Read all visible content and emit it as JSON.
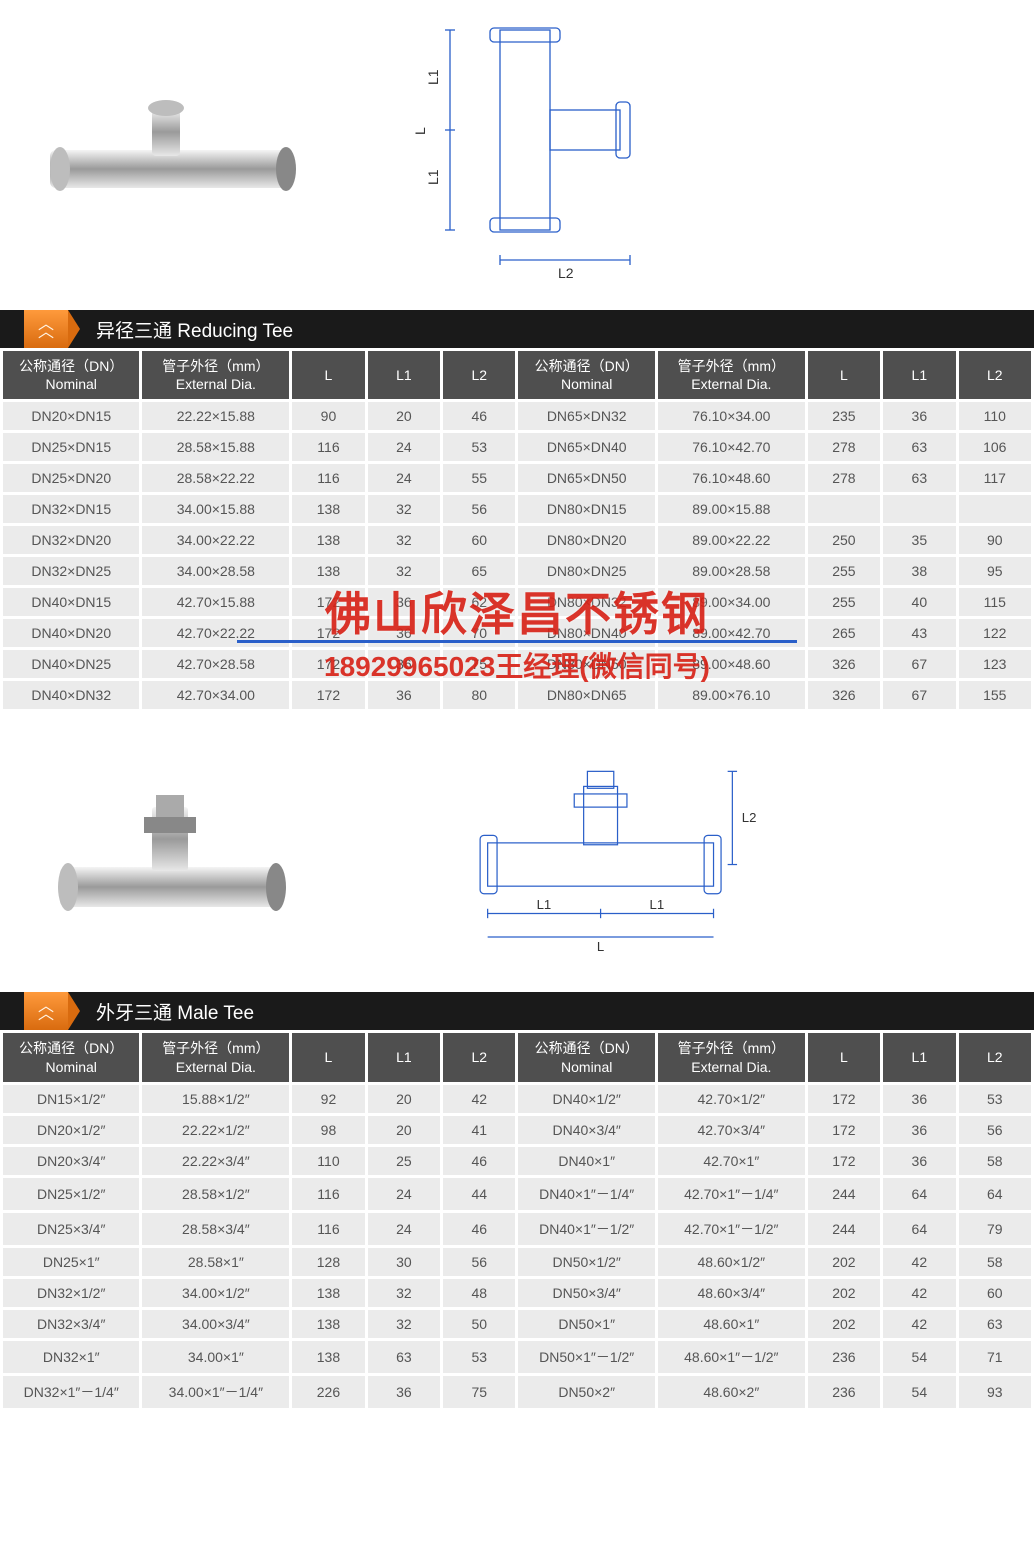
{
  "section1": {
    "title": "异径三通 Reducing Tee",
    "headers": {
      "dn": "公称通径（DN）\nNominal",
      "ext": "管子外径（mm）\nExternal Dia.",
      "L": "L",
      "L1": "L1",
      "L2": "L2"
    },
    "rows_left": [
      {
        "dn": "DN20×DN15",
        "ext": "22.22×15.88",
        "L": "90",
        "L1": "20",
        "L2": "46"
      },
      {
        "dn": "DN25×DN15",
        "ext": "28.58×15.88",
        "L": "116",
        "L1": "24",
        "L2": "53"
      },
      {
        "dn": "DN25×DN20",
        "ext": "28.58×22.22",
        "L": "116",
        "L1": "24",
        "L2": "55"
      },
      {
        "dn": "DN32×DN15",
        "ext": "34.00×15.88",
        "L": "138",
        "L1": "32",
        "L2": "56"
      },
      {
        "dn": "DN32×DN20",
        "ext": "34.00×22.22",
        "L": "138",
        "L1": "32",
        "L2": "60"
      },
      {
        "dn": "DN32×DN25",
        "ext": "34.00×28.58",
        "L": "138",
        "L1": "32",
        "L2": "65"
      },
      {
        "dn": "DN40×DN15",
        "ext": "42.70×15.88",
        "L": "172",
        "L1": "36",
        "L2": "62"
      },
      {
        "dn": "DN40×DN20",
        "ext": "42.70×22.22",
        "L": "172",
        "L1": "36",
        "L2": "70"
      },
      {
        "dn": "DN40×DN25",
        "ext": "42.70×28.58",
        "L": "172",
        "L1": "36",
        "L2": "75"
      },
      {
        "dn": "DN40×DN32",
        "ext": "42.70×34.00",
        "L": "172",
        "L1": "36",
        "L2": "80"
      }
    ],
    "rows_right": [
      {
        "dn": "DN65×DN32",
        "ext": "76.10×34.00",
        "L": "235",
        "L1": "36",
        "L2": "110"
      },
      {
        "dn": "DN65×DN40",
        "ext": "76.10×42.70",
        "L": "278",
        "L1": "63",
        "L2": "106"
      },
      {
        "dn": "DN65×DN50",
        "ext": "76.10×48.60",
        "L": "278",
        "L1": "63",
        "L2": "117"
      },
      {
        "dn": "DN80×DN15",
        "ext": "89.00×15.88",
        "L": "",
        "L1": "",
        "L2": ""
      },
      {
        "dn": "DN80×DN20",
        "ext": "89.00×22.22",
        "L": "250",
        "L1": "35",
        "L2": "90"
      },
      {
        "dn": "DN80×DN25",
        "ext": "89.00×28.58",
        "L": "255",
        "L1": "38",
        "L2": "95"
      },
      {
        "dn": "DN80×DN32",
        "ext": "89.00×34.00",
        "L": "255",
        "L1": "40",
        "L2": "115"
      },
      {
        "dn": "DN80×DN40",
        "ext": "89.00×42.70",
        "L": "265",
        "L1": "43",
        "L2": "122"
      },
      {
        "dn": "DN80×DN50",
        "ext": "89.00×48.60",
        "L": "326",
        "L1": "67",
        "L2": "123"
      },
      {
        "dn": "DN80×DN65",
        "ext": "89.00×76.10",
        "L": "326",
        "L1": "67",
        "L2": "155"
      }
    ]
  },
  "section2": {
    "title": "外牙三通 Male Tee",
    "rows_left": [
      {
        "dn": "DN15×1/2″",
        "ext": "15.88×1/2″",
        "L": "92",
        "L1": "20",
        "L2": "42"
      },
      {
        "dn": "DN20×1/2″",
        "ext": "22.22×1/2″",
        "L": "98",
        "L1": "20",
        "L2": "41"
      },
      {
        "dn": "DN20×3/4″",
        "ext": "22.22×3/4″",
        "L": "110",
        "L1": "25",
        "L2": "46"
      },
      {
        "dn": "DN25×1/2″",
        "ext": "28.58×1/2″",
        "L": "116",
        "L1": "24",
        "L2": "44"
      },
      {
        "dn": "DN25×3/4″",
        "ext": "28.58×3/4″",
        "L": "116",
        "L1": "24",
        "L2": "46"
      },
      {
        "dn": "DN25×1″",
        "ext": "28.58×1″",
        "L": "128",
        "L1": "30",
        "L2": "56"
      },
      {
        "dn": "DN32×1/2″",
        "ext": "34.00×1/2″",
        "L": "138",
        "L1": "32",
        "L2": "48"
      },
      {
        "dn": "DN32×3/4″",
        "ext": "34.00×3/4″",
        "L": "138",
        "L1": "32",
        "L2": "50"
      },
      {
        "dn": "DN32×1″",
        "ext": "34.00×1″",
        "L": "138",
        "L1": "63",
        "L2": "53"
      },
      {
        "dn": "DN32×1″－1/4″",
        "ext": "34.00×1″－1/4″",
        "L": "226",
        "L1": "36",
        "L2": "75"
      }
    ],
    "rows_right": [
      {
        "dn": "DN40×1/2″",
        "ext": "42.70×1/2″",
        "L": "172",
        "L1": "36",
        "L2": "53"
      },
      {
        "dn": "DN40×3/4″",
        "ext": "42.70×3/4″",
        "L": "172",
        "L1": "36",
        "L2": "56"
      },
      {
        "dn": "DN40×1″",
        "ext": "42.70×1″",
        "L": "172",
        "L1": "36",
        "L2": "58"
      },
      {
        "dn": "DN40×1″－1/4″",
        "ext": "42.70×1″－1/4″",
        "L": "244",
        "L1": "64",
        "L2": "64"
      },
      {
        "dn": "DN40×1″－1/2″",
        "ext": "42.70×1″－1/2″",
        "L": "244",
        "L1": "64",
        "L2": "79"
      },
      {
        "dn": "DN50×1/2″",
        "ext": "48.60×1/2″",
        "L": "202",
        "L1": "42",
        "L2": "58"
      },
      {
        "dn": "DN50×3/4″",
        "ext": "48.60×3/4″",
        "L": "202",
        "L1": "42",
        "L2": "60"
      },
      {
        "dn": "DN50×1″",
        "ext": "48.60×1″",
        "L": "202",
        "L1": "42",
        "L2": "63"
      },
      {
        "dn": "DN50×1″－1/2″",
        "ext": "48.60×1″－1/2″",
        "L": "236",
        "L1": "54",
        "L2": "71"
      },
      {
        "dn": "DN50×2″",
        "ext": "48.60×2″",
        "L": "236",
        "L1": "54",
        "L2": "93"
      }
    ]
  },
  "watermark": {
    "line1": "佛山欣泽昌不锈钢",
    "line2": "18929965023王经理(微信同号)"
  },
  "diagram1_labels": {
    "L": "L",
    "L1": "L1",
    "L2": "L2"
  },
  "diagram2_labels": {
    "L": "L",
    "L1": "L1",
    "L2": "L2"
  },
  "style": {
    "header_bg": "#4f4f4f",
    "cell_bg": "#ebebeb",
    "section_bg": "#1a1a1a",
    "badge_gradient": [
      "#ff9a3c",
      "#d96b0f"
    ],
    "watermark_color": "#d82015",
    "underline_color": "#2a5fc9"
  }
}
